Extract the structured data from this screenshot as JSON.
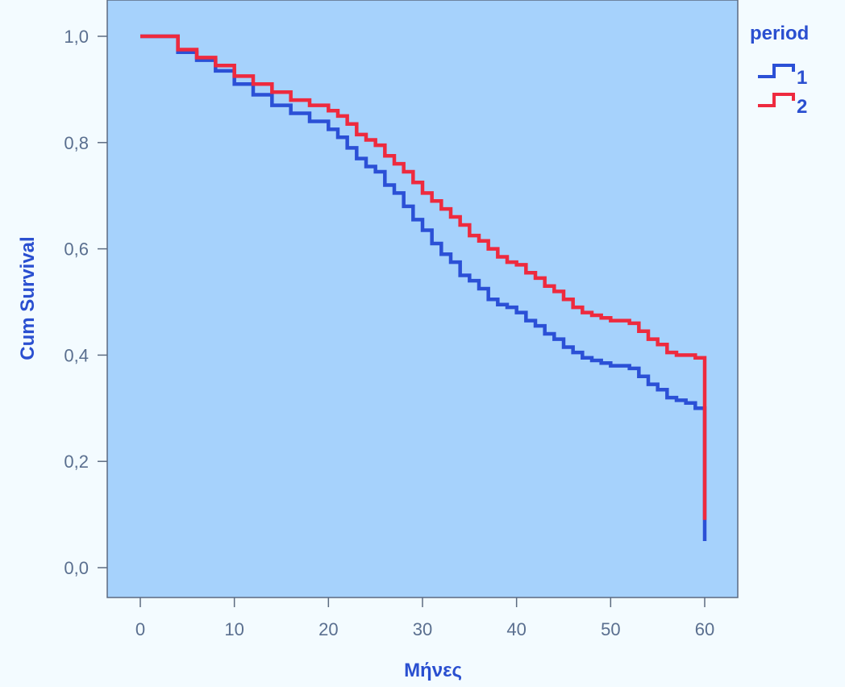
{
  "chart_data": {
    "type": "line",
    "step": true,
    "title": "",
    "xlabel": "Μήνες",
    "ylabel": "Cum Survival",
    "xlim": [
      0,
      60
    ],
    "ylim": [
      0,
      1
    ],
    "x_ticks": [
      0,
      10,
      20,
      30,
      40,
      50,
      60
    ],
    "y_ticks": [
      0,
      0.2,
      0.4,
      0.6,
      0.8,
      1.0
    ],
    "x_tick_labels": [
      "0",
      "10",
      "20",
      "30",
      "40",
      "50",
      "60"
    ],
    "y_tick_labels": [
      "0,0",
      "0,2",
      "0,4",
      "0,6",
      "0,8",
      "1,0"
    ],
    "grid": false,
    "legend": {
      "title": "period",
      "placement": "right"
    },
    "series": [
      {
        "name": "1",
        "color": "#2b50d6",
        "x": [
          0,
          3,
          4,
          6,
          8,
          10,
          12,
          14,
          16,
          18,
          20,
          21,
          22,
          23,
          24,
          25,
          26,
          27,
          28,
          29,
          30,
          31,
          32,
          33,
          34,
          35,
          36,
          37,
          38,
          39,
          40,
          41,
          42,
          43,
          44,
          45,
          46,
          47,
          48,
          49,
          50,
          51,
          52,
          53,
          54,
          55,
          56,
          57,
          58,
          59,
          60,
          60
        ],
        "y": [
          1.0,
          1.0,
          0.97,
          0.955,
          0.935,
          0.91,
          0.89,
          0.87,
          0.855,
          0.84,
          0.825,
          0.81,
          0.79,
          0.77,
          0.755,
          0.745,
          0.72,
          0.705,
          0.68,
          0.655,
          0.635,
          0.61,
          0.59,
          0.575,
          0.55,
          0.54,
          0.525,
          0.505,
          0.495,
          0.49,
          0.48,
          0.465,
          0.455,
          0.44,
          0.43,
          0.415,
          0.405,
          0.395,
          0.39,
          0.385,
          0.38,
          0.38,
          0.375,
          0.36,
          0.345,
          0.335,
          0.32,
          0.315,
          0.31,
          0.3,
          0.3,
          0.05
        ]
      },
      {
        "name": "2",
        "color": "#ee2a3e",
        "x": [
          0,
          3,
          4,
          6,
          8,
          10,
          12,
          14,
          16,
          18,
          20,
          21,
          22,
          23,
          24,
          25,
          26,
          27,
          28,
          29,
          30,
          31,
          32,
          33,
          34,
          35,
          36,
          37,
          38,
          39,
          40,
          41,
          42,
          43,
          44,
          45,
          46,
          47,
          48,
          49,
          50,
          51,
          52,
          53,
          54,
          55,
          56,
          57,
          58,
          59,
          60,
          60
        ],
        "y": [
          1.0,
          1.0,
          0.975,
          0.96,
          0.945,
          0.925,
          0.91,
          0.895,
          0.88,
          0.87,
          0.86,
          0.85,
          0.835,
          0.815,
          0.805,
          0.795,
          0.775,
          0.76,
          0.745,
          0.725,
          0.705,
          0.69,
          0.675,
          0.66,
          0.645,
          0.625,
          0.615,
          0.6,
          0.585,
          0.575,
          0.57,
          0.555,
          0.545,
          0.53,
          0.52,
          0.505,
          0.49,
          0.48,
          0.475,
          0.47,
          0.465,
          0.465,
          0.46,
          0.445,
          0.43,
          0.42,
          0.405,
          0.4,
          0.4,
          0.395,
          0.39,
          0.09
        ]
      }
    ]
  }
}
